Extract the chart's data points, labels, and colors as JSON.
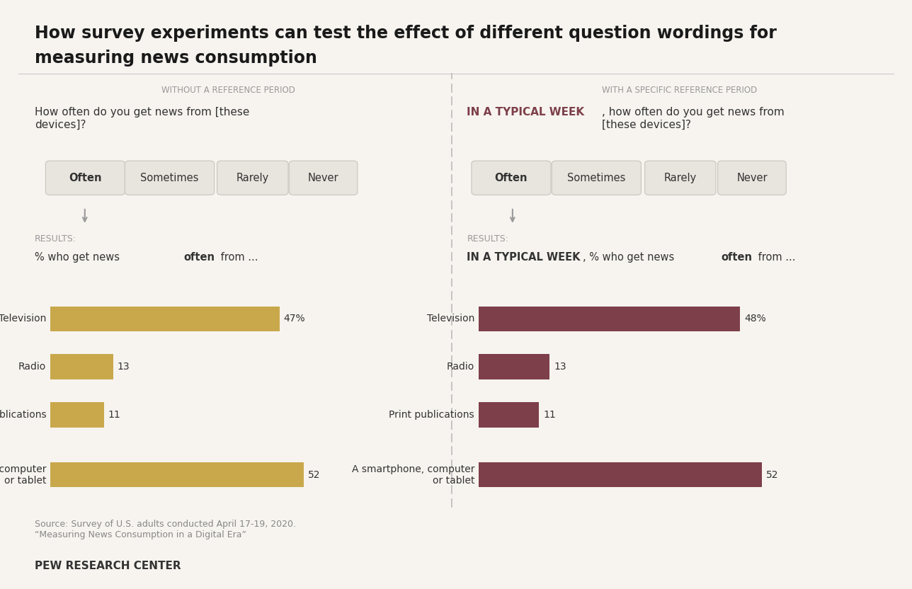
{
  "title_line1": "How survey experiments can test the effect of different question wordings for",
  "title_line2": "measuring news consumption",
  "background_color": "#f7f4ef",
  "left_panel": {
    "header": "WITHOUT A REFERENCE PERIOD",
    "question_normal": "How often do you get news from [these\ndevices]?",
    "buttons": [
      "Often",
      "Sometimes",
      "Rarely",
      "Never"
    ],
    "results_label": "RESULTS:",
    "results_desc_normal": "% who get news ",
    "results_desc_bold": "often",
    "results_desc_end": " from ...",
    "categories": [
      "Television",
      "Radio",
      "Print publications",
      "A smartphone, computer\nor tablet"
    ],
    "values": [
      47,
      13,
      11,
      52
    ],
    "bar_color": "#c9a84c",
    "value_labels": [
      "47%",
      "13",
      "11",
      "52"
    ]
  },
  "right_panel": {
    "header": "WITH A SPECIFIC REFERENCE PERIOD",
    "question_bold": "IN A TYPICAL WEEK",
    "question_normal": ", how often do you get news from\n[these devices]?",
    "buttons": [
      "Often",
      "Sometimes",
      "Rarely",
      "Never"
    ],
    "results_label": "RESULTS:",
    "results_desc_bold_prefix": "IN A TYPICAL WEEK",
    "results_desc_normal": ", % who get news ",
    "results_desc_bold2": "often",
    "results_desc_end": " from ...",
    "categories": [
      "Television",
      "Radio",
      "Print publications",
      "A smartphone, computer\nor tablet"
    ],
    "values": [
      48,
      13,
      11,
      52
    ],
    "bar_color": "#7d3f4a",
    "value_labels": [
      "48%",
      "13",
      "11",
      "52"
    ]
  },
  "source_text": "Source: Survey of U.S. adults conducted April 17-19, 2020.\n“Measuring News Consumption in a Digital Era”",
  "footer_text": "PEW RESEARCH CENTER",
  "button_bg": "#e8e4de",
  "button_border": "#c8c4be",
  "arrow_color": "#999999",
  "header_color": "#999999",
  "text_color": "#333333",
  "dark_red_color": "#7d3f4a"
}
